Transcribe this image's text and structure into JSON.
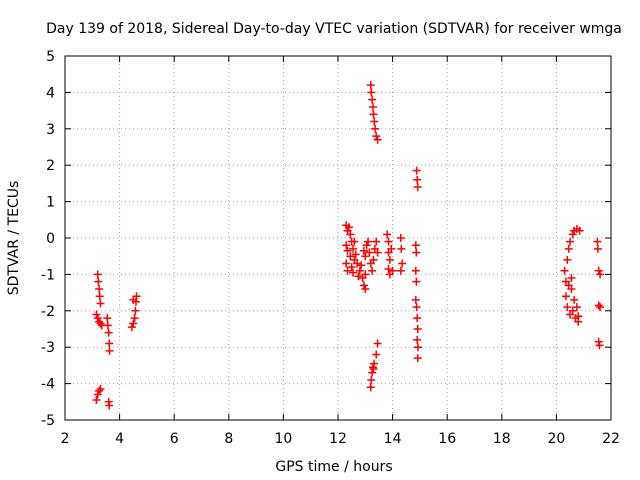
{
  "chart_data": {
    "type": "scatter",
    "title": "Day 139 of 2018, Sidereal Day-to-day VTEC variation (SDTVAR) for receiver wmga",
    "xlabel": "GPS time / hours",
    "ylabel": "SDTVAR / TECUs",
    "xlim": [
      2,
      22
    ],
    "ylim": [
      -5,
      5
    ],
    "xticks": [
      2,
      4,
      6,
      8,
      10,
      12,
      14,
      16,
      18,
      20,
      22
    ],
    "yticks": [
      -5,
      -4,
      -3,
      -2,
      -1,
      0,
      1,
      2,
      3,
      4,
      5
    ],
    "grid": true,
    "marker": "plus",
    "color": "#ff0000",
    "series": [
      {
        "name": "SDTVAR",
        "points": [
          [
            3.2,
            -1.0
          ],
          [
            3.22,
            -1.2
          ],
          [
            3.25,
            -1.4
          ],
          [
            3.27,
            -1.6
          ],
          [
            3.3,
            -1.8
          ],
          [
            3.15,
            -2.1
          ],
          [
            3.2,
            -2.2
          ],
          [
            3.25,
            -2.3
          ],
          [
            3.3,
            -2.35
          ],
          [
            3.35,
            -2.4
          ],
          [
            3.15,
            -4.45
          ],
          [
            3.2,
            -4.3
          ],
          [
            3.25,
            -4.2
          ],
          [
            3.3,
            -4.15
          ],
          [
            3.55,
            -2.2
          ],
          [
            3.57,
            -2.4
          ],
          [
            3.6,
            -2.6
          ],
          [
            3.62,
            -2.9
          ],
          [
            3.63,
            -3.1
          ],
          [
            3.6,
            -4.5
          ],
          [
            3.62,
            -4.6
          ],
          [
            4.45,
            -2.45
          ],
          [
            4.5,
            -2.35
          ],
          [
            4.55,
            -2.2
          ],
          [
            4.58,
            -2.0
          ],
          [
            4.6,
            -1.75
          ],
          [
            4.62,
            -1.6
          ],
          [
            4.5,
            -1.7
          ],
          [
            12.3,
            0.35
          ],
          [
            12.35,
            0.2
          ],
          [
            12.3,
            -0.2
          ],
          [
            12.35,
            -0.35
          ],
          [
            12.3,
            -0.7
          ],
          [
            12.35,
            -0.9
          ],
          [
            12.4,
            0.3
          ],
          [
            12.45,
            0.1
          ],
          [
            12.5,
            -0.1
          ],
          [
            12.55,
            -0.3
          ],
          [
            12.45,
            -0.5
          ],
          [
            12.5,
            -0.8
          ],
          [
            12.55,
            -0.95
          ],
          [
            12.6,
            -0.6
          ],
          [
            12.6,
            -0.1
          ],
          [
            12.65,
            -0.45
          ],
          [
            12.7,
            -0.7
          ],
          [
            12.75,
            -1.05
          ],
          [
            12.8,
            -0.9
          ],
          [
            12.85,
            -0.75
          ],
          [
            12.9,
            -1.1
          ],
          [
            12.95,
            -1.3
          ],
          [
            13.0,
            -1.0
          ],
          [
            13.0,
            -0.5
          ],
          [
            13.05,
            -0.2
          ],
          [
            13.1,
            -0.1
          ],
          [
            13.15,
            -0.4
          ],
          [
            13.2,
            -0.7
          ],
          [
            13.25,
            -0.9
          ],
          [
            13.3,
            -0.6
          ],
          [
            13.35,
            -0.3
          ],
          [
            13.4,
            -0.1
          ],
          [
            13.45,
            -0.4
          ],
          [
            13.0,
            -1.4
          ],
          [
            12.95,
            -0.35
          ],
          [
            13.2,
            4.2
          ],
          [
            13.22,
            4.0
          ],
          [
            13.25,
            3.8
          ],
          [
            13.28,
            3.6
          ],
          [
            13.3,
            3.4
          ],
          [
            13.33,
            3.2
          ],
          [
            13.36,
            3.0
          ],
          [
            13.4,
            2.8
          ],
          [
            13.45,
            2.7
          ],
          [
            13.2,
            -4.1
          ],
          [
            13.22,
            -3.9
          ],
          [
            13.25,
            -3.7
          ],
          [
            13.28,
            -3.55
          ],
          [
            13.32,
            -3.45
          ],
          [
            13.4,
            -3.2
          ],
          [
            13.45,
            -2.9
          ],
          [
            13.3,
            -3.6
          ],
          [
            13.8,
            0.1
          ],
          [
            13.85,
            -0.1
          ],
          [
            13.85,
            -0.4
          ],
          [
            13.9,
            -0.6
          ],
          [
            13.85,
            -0.85
          ],
          [
            13.9,
            -1.0
          ],
          [
            13.95,
            -0.3
          ],
          [
            14.0,
            -0.9
          ],
          [
            14.3,
            0.0
          ],
          [
            14.32,
            -0.3
          ],
          [
            14.35,
            -0.7
          ],
          [
            14.3,
            -0.9
          ],
          [
            14.85,
            -0.2
          ],
          [
            14.87,
            -0.4
          ],
          [
            14.85,
            -0.9
          ],
          [
            14.87,
            -1.2
          ],
          [
            14.85,
            -1.7
          ],
          [
            14.88,
            -1.9
          ],
          [
            14.9,
            -2.2
          ],
          [
            14.92,
            -2.5
          ],
          [
            14.9,
            -2.8
          ],
          [
            14.93,
            -3.0
          ],
          [
            14.92,
            -3.3
          ],
          [
            14.88,
            1.85
          ],
          [
            14.9,
            1.6
          ],
          [
            14.92,
            1.4
          ],
          [
            20.3,
            -0.9
          ],
          [
            20.35,
            -1.2
          ],
          [
            20.35,
            -1.6
          ],
          [
            20.4,
            -1.9
          ],
          [
            20.4,
            -0.6
          ],
          [
            20.45,
            -0.3
          ],
          [
            20.5,
            -0.1
          ],
          [
            20.55,
            -1.4
          ],
          [
            20.5,
            -2.1
          ],
          [
            20.6,
            -2.0
          ],
          [
            20.6,
            0.1
          ],
          [
            20.65,
            -1.7
          ],
          [
            20.7,
            -2.2
          ],
          [
            20.65,
            0.2
          ],
          [
            20.75,
            0.25
          ],
          [
            20.75,
            -1.9
          ],
          [
            20.8,
            -2.3
          ],
          [
            20.85,
            0.2
          ],
          [
            20.8,
            -2.15
          ],
          [
            20.55,
            -1.1
          ],
          [
            20.45,
            -1.3
          ],
          [
            21.5,
            -0.1
          ],
          [
            21.52,
            -0.3
          ],
          [
            21.55,
            -0.9
          ],
          [
            21.6,
            -1.0
          ],
          [
            21.55,
            -1.85
          ],
          [
            21.6,
            -1.9
          ],
          [
            21.55,
            -2.85
          ],
          [
            21.58,
            -2.95
          ]
        ]
      }
    ]
  }
}
